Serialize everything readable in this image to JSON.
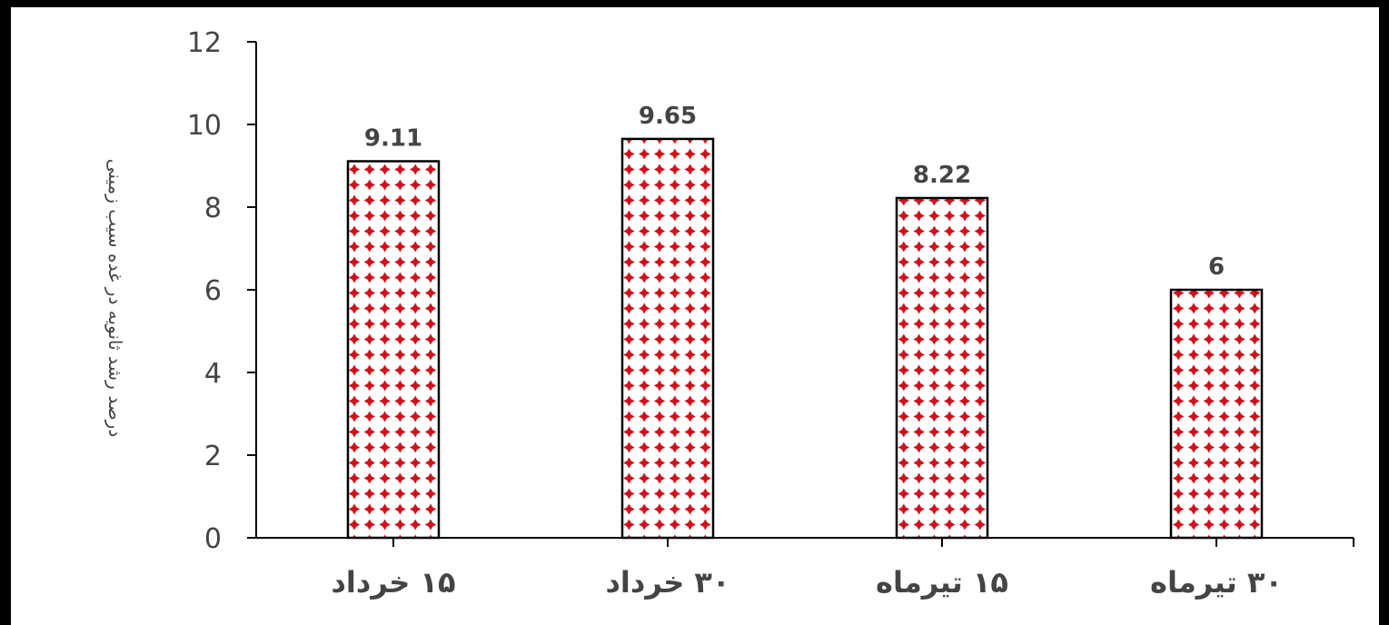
{
  "chart_data": {
    "type": "bar",
    "categories": [
      "۱۵ خرداد",
      "۳۰ خرداد",
      "۱۵ تیرماه",
      "۳۰ تیرماه"
    ],
    "values": [
      9.11,
      9.65,
      8.22,
      6
    ],
    "value_labels": [
      "9.11",
      "9.65",
      "8.22",
      "6"
    ],
    "ylabel": "درصد رشد ثانویه در غده سیب زمینی",
    "xlabel": "",
    "title": "",
    "ylim": [
      0,
      12
    ],
    "yticks": [
      0,
      2,
      4,
      6,
      8,
      10,
      12
    ],
    "grid": false,
    "legend": "none",
    "bar_fill_pattern": "dotted",
    "colors": {
      "bar_dots": "#d0101a",
      "bar_bg": "#ffffff",
      "bar_border": "#000000",
      "axis": "#000000",
      "text": "#444444"
    }
  }
}
